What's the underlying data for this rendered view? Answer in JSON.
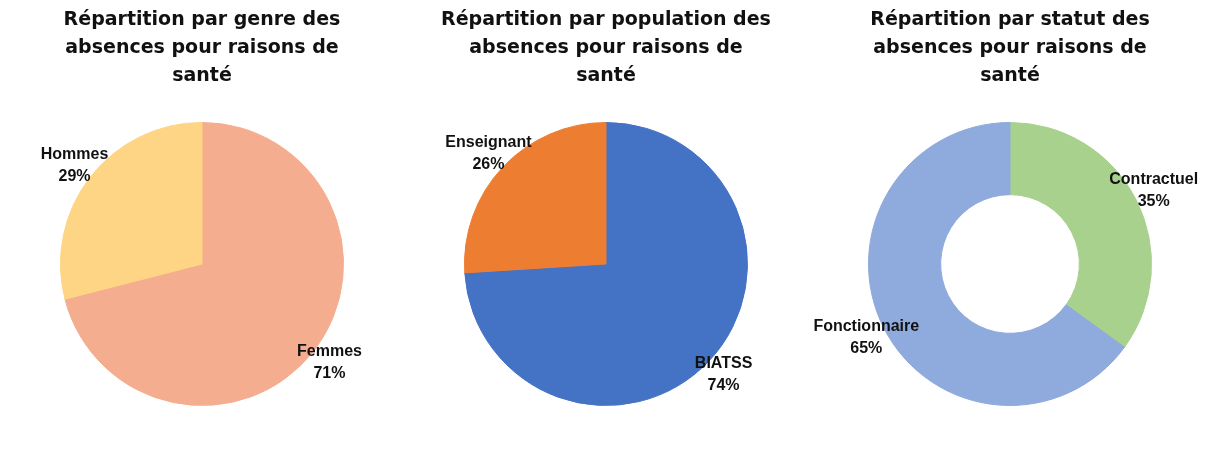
{
  "chart_data": [
    {
      "type": "pie",
      "title": "Répartition par genre des absences pour raisons de santé",
      "categories": [
        "Femmes",
        "Hommes"
      ],
      "values": [
        71,
        29
      ],
      "value_labels": [
        "71%",
        "29%"
      ],
      "colors": [
        "#f5ad8f",
        "#fed584"
      ],
      "legend": false
    },
    {
      "type": "pie",
      "title": "Répartition par population des absences pour raisons de santé",
      "categories": [
        "BIATSS",
        "Enseignant"
      ],
      "values": [
        74,
        26
      ],
      "value_labels": [
        "74%",
        "26%"
      ],
      "colors": [
        "#4472c4",
        "#ed7d31"
      ],
      "legend": false
    },
    {
      "type": "donut",
      "title": "Répartition par statut des absences pour raisons de santé",
      "categories": [
        "Contractuel",
        "Fonctionnaire"
      ],
      "values": [
        35,
        65
      ],
      "value_labels": [
        "35%",
        "65%"
      ],
      "colors": [
        "#a9d18e",
        "#8faadc"
      ],
      "legend": false
    }
  ]
}
